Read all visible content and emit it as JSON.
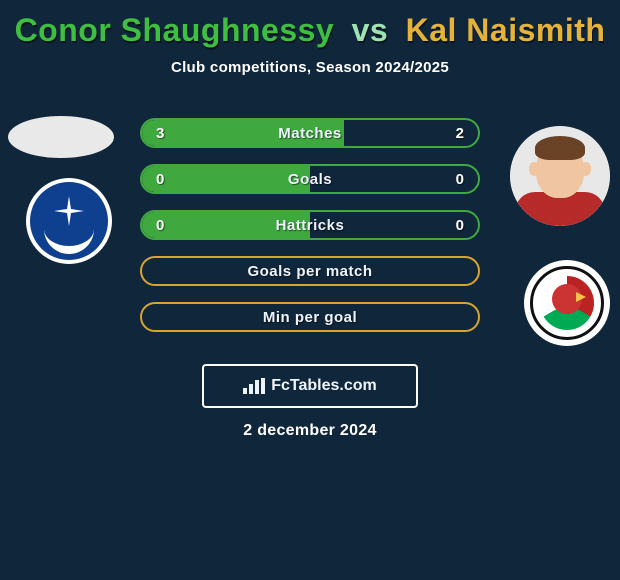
{
  "colors": {
    "bg": "#10263a",
    "title_left": "#3fbf3f",
    "title_mid": "#9fe4b0",
    "title_right": "#e6b33a",
    "bar_border_green": "#3fa83f",
    "bar_fill_green": "#3fa83f",
    "bar_border_yellow": "#d7a52e",
    "bar_text": "#eef4fb",
    "val_text": "#ffffff"
  },
  "title": {
    "left": "Conor Shaughnessy",
    "mid": "vs",
    "right": "Kal Naismith"
  },
  "subtitle": "Club competitions, Season 2024/2025",
  "date": "2 december 2024",
  "brand": "FcTables.com",
  "rows": [
    {
      "label": "Matches",
      "left": "3",
      "right": "2",
      "fill_pct": 60,
      "border": "bar_border_green",
      "fill": "bar_fill_green"
    },
    {
      "label": "Goals",
      "left": "0",
      "right": "0",
      "fill_pct": 50,
      "border": "bar_border_green",
      "fill": "bar_fill_green"
    },
    {
      "label": "Hattricks",
      "left": "0",
      "right": "0",
      "fill_pct": 50,
      "border": "bar_border_green",
      "fill": "bar_fill_green"
    },
    {
      "label": "Goals per match",
      "left": "",
      "right": "",
      "fill_pct": 100,
      "border": "bar_border_yellow",
      "fill": ""
    },
    {
      "label": "Min per goal",
      "left": "",
      "right": "",
      "fill_pct": 100,
      "border": "bar_border_yellow",
      "fill": ""
    }
  ],
  "players": {
    "left": {
      "name": "Conor Shaughnessy",
      "club_hint": "portsmouth-like"
    },
    "right": {
      "name": "Kal Naismith",
      "club_hint": "bristol-city-like"
    }
  }
}
